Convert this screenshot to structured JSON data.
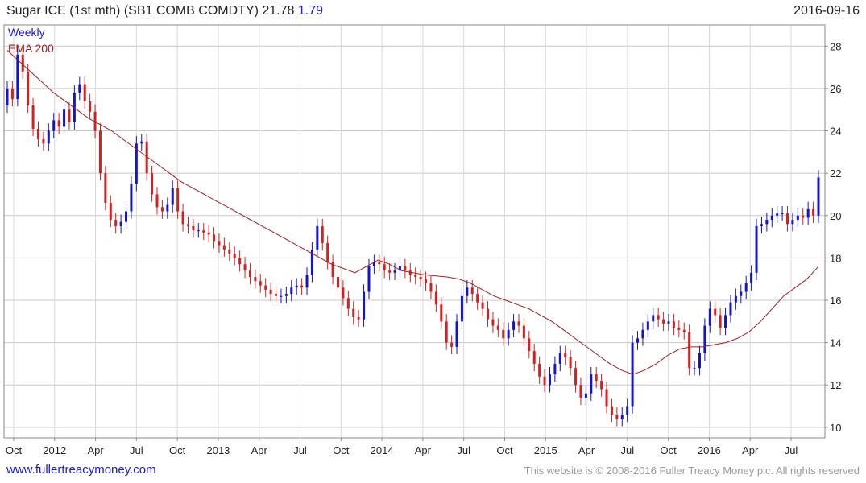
{
  "header": {
    "title": "Sugar ICE (1st mth)  (SB1 COMB COMDTY) 21.78",
    "change": "1.79",
    "date": "2016-09-16"
  },
  "footer": {
    "site": "www.fullertreacymoney.com",
    "copyright": "This website is © 2008-2016 Fuller Treacy Money plc. All rights reserved"
  },
  "colors": {
    "up": "#1414cc",
    "down": "#d42020",
    "ema": "#a02020",
    "grid": "#c8c8c8"
  },
  "chart_data": {
    "type": "line",
    "legend": [
      "Weekly",
      "EMA 200"
    ],
    "legend_position": "top-left",
    "grid": true,
    "ylim": [
      9.5,
      29
    ],
    "y_ticks": [
      10,
      12,
      14,
      16,
      18,
      20,
      22,
      24,
      26,
      28
    ],
    "x_ticks": [
      "Oct",
      "2012",
      "Apr",
      "Jul",
      "Oct",
      "2013",
      "Apr",
      "Jul",
      "Oct",
      "2014",
      "Apr",
      "Jul",
      "Oct",
      "2015",
      "Apr",
      "Jul",
      "Oct",
      "2016",
      "Apr",
      "Jul"
    ],
    "series": [
      {
        "name": "Weekly",
        "values": [
          26.0,
          25.5,
          27.6,
          26.8,
          25.2,
          24.1,
          23.6,
          23.4,
          24.0,
          24.5,
          24.2,
          25.0,
          24.4,
          25.8,
          26.2,
          25.4,
          24.9,
          24.0,
          22.0,
          20.6,
          19.8,
          19.5,
          19.7,
          20.2,
          21.5,
          23.4,
          23.5,
          22.0,
          21.0,
          20.4,
          20.2,
          20.5,
          21.3,
          20.2,
          19.6,
          19.5,
          19.3,
          19.3,
          19.2,
          19.1,
          18.8,
          18.6,
          18.4,
          18.2,
          18.0,
          17.7,
          17.4,
          17.1,
          16.9,
          16.7,
          16.5,
          16.3,
          16.2,
          16.2,
          16.3,
          16.6,
          16.7,
          16.6,
          17.2,
          18.4,
          19.5,
          18.7,
          17.8,
          17.1,
          16.6,
          16.1,
          15.6,
          15.2,
          15.1,
          16.4,
          17.6,
          17.8,
          17.7,
          17.4,
          17.3,
          17.4,
          17.6,
          17.4,
          17.2,
          17.1,
          17.0,
          16.8,
          16.4,
          15.8,
          15.0,
          14.0,
          13.8,
          15.0,
          16.2,
          16.6,
          16.3,
          15.9,
          15.6,
          15.1,
          14.8,
          14.6,
          14.2,
          14.6,
          15.0,
          14.8,
          14.2,
          13.6,
          13.0,
          12.4,
          12.0,
          12.5,
          13.0,
          13.5,
          13.3,
          12.8,
          12.0,
          11.4,
          11.6,
          12.5,
          12.2,
          11.8,
          11.0,
          10.6,
          10.4,
          10.6,
          11.0,
          14.0,
          14.2,
          14.6,
          15.0,
          15.3,
          15.1,
          14.9,
          15.0,
          14.7,
          14.6,
          14.5,
          12.8,
          12.8,
          13.5,
          14.8,
          15.6,
          15.3,
          14.7,
          15.3,
          15.9,
          16.2,
          16.4,
          16.8,
          17.3,
          19.5,
          19.6,
          19.8,
          20.0,
          20.1,
          20.1,
          19.6,
          19.8,
          20.0,
          19.9,
          20.3,
          20.0,
          21.8
        ]
      },
      {
        "name": "EMA 200",
        "values": [
          27.8,
          27.3,
          26.8,
          26.3,
          25.8,
          25.4,
          25.0,
          24.6,
          24.3,
          24.0,
          23.6,
          23.2,
          22.8,
          22.4,
          22.0,
          21.6,
          21.3,
          21.0,
          20.7,
          20.4,
          20.1,
          19.8,
          19.5,
          19.2,
          18.9,
          18.6,
          18.3,
          18.0,
          17.7,
          17.5,
          17.3,
          17.6,
          17.9,
          17.7,
          17.4,
          17.3,
          17.2,
          17.15,
          17.1,
          17.0,
          16.8,
          16.5,
          16.2,
          16.0,
          15.8,
          15.6,
          15.3,
          15.0,
          14.6,
          14.2,
          13.8,
          13.4,
          13.0,
          12.7,
          12.5,
          12.7,
          13.0,
          13.4,
          13.7,
          13.8,
          13.8,
          13.9,
          14.0,
          14.2,
          14.5,
          15.0,
          15.6,
          16.2,
          16.6,
          17.0,
          17.6
        ]
      }
    ]
  }
}
